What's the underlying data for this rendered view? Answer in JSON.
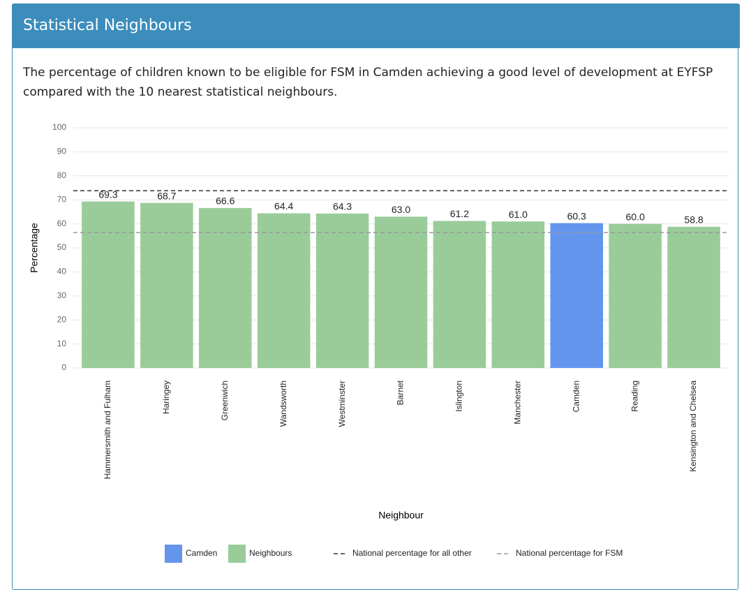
{
  "panel": {
    "title": "Statistical Neighbours",
    "description": "The percentage of children known to be eligible for FSM in Camden achieving a good level of development at EYFSP compared with the 10 nearest statistical neighbours."
  },
  "chart_data": {
    "type": "bar",
    "categories": [
      "Hammersmith and Fulham",
      "Haringey",
      "Greenwich",
      "Wandsworth",
      "Westminster",
      "Barnet",
      "Islington",
      "Manchester",
      "Camden",
      "Reading",
      "Kensington and Chelsea"
    ],
    "values": [
      69.3,
      68.7,
      66.6,
      64.4,
      64.3,
      63.0,
      61.2,
      61.0,
      60.3,
      60.0,
      58.8
    ],
    "value_labels": [
      "69.3",
      "68.7",
      "66.6",
      "64.4",
      "64.3",
      "63.0",
      "61.2",
      "61.0",
      "60.3",
      "60.0",
      "58.8"
    ],
    "colors": [
      "#99cc99",
      "#99cc99",
      "#99cc99",
      "#99cc99",
      "#99cc99",
      "#99cc99",
      "#99cc99",
      "#99cc99",
      "#6495ed",
      "#99cc99",
      "#99cc99"
    ],
    "legend": [
      {
        "name": "Camden",
        "color": "#6495ed"
      },
      {
        "name": "Neighbours",
        "color": "#99cc99"
      }
    ],
    "reference_lines": [
      {
        "name": "National percentage for all other",
        "value": 73.8,
        "color": "#333333"
      },
      {
        "name": "National percentage for FSM",
        "value": 56.4,
        "color": "#999999"
      }
    ],
    "x_label": "Neighbour",
    "y_label": "Percentage",
    "ylim": [
      0,
      100
    ],
    "yticks": [
      0,
      10,
      20,
      30,
      40,
      50,
      60,
      70,
      80,
      90,
      100
    ],
    "grid": true
  }
}
